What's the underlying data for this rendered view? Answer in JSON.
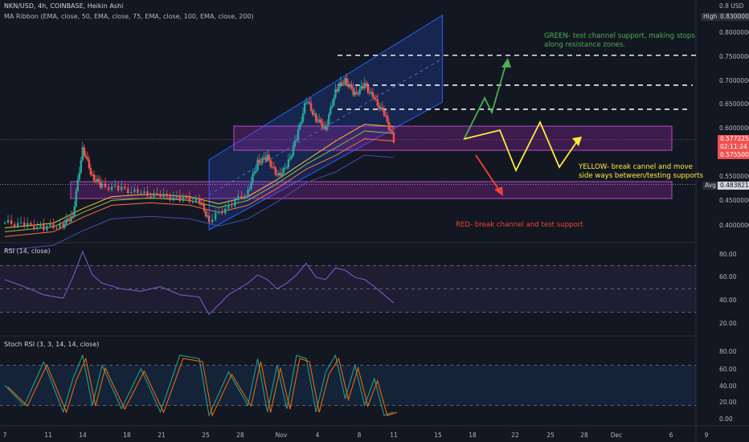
{
  "header": {
    "symbol_line": "NKN/USD, 4h, COINBASE, Heikin Ashi",
    "ma_line": "MA Ribbon (EMA, close, 50, EMA, close, 75, EMA, close, 100, EMA, close, 200)"
  },
  "price_axis": {
    "ticks": [
      "0.8 USD",
      "0.80000000",
      "0.75000000",
      "0.70000000",
      "0.65000000",
      "0.60000000",
      "0.55000000",
      "0.50000000",
      "0.45000000",
      "0.40000000"
    ],
    "high_label": "High",
    "high_value": "0.83000000",
    "current_price": "0.57722500",
    "countdown": "02:11:24",
    "open_price": "0.57550000",
    "avg_label": "Avg",
    "avg_value": "0.48382196"
  },
  "rsi_panel": {
    "label": "RSI (14, close)",
    "ticks": [
      "80.00",
      "60.00",
      "40.00",
      "20.00"
    ]
  },
  "stoch_panel": {
    "label": "Stoch RSI (3, 3, 14, 14, close)",
    "ticks": [
      "80.00",
      "60.00",
      "40.00",
      "20.00",
      "0.00"
    ]
  },
  "time_axis": [
    "7",
    "11",
    "14",
    "18",
    "21",
    "25",
    "28",
    "Nov",
    "4",
    "8",
    "11",
    "15",
    "18",
    "22",
    "25",
    "28",
    "Dec",
    "6",
    "9"
  ],
  "annotations": {
    "green": "GREEN- test channel support, making stops along resistance zones.",
    "yellow": "YELLOW- break cannel and move side ways between/testing supports",
    "red": "RED- break channel and test support"
  },
  "colors": {
    "background": "#131722",
    "bull": "#26a69a",
    "bear": "#ef5350",
    "channel": "#2962ff",
    "zone": "#9c27b0",
    "rsi": "#7e57c2",
    "green_arrow": "#4caf50",
    "yellow_arrow": "#ffeb3b",
    "red_arrow": "#f44336"
  },
  "chart_data": {
    "type": "candlestick",
    "price_range": [
      0.385,
      0.835
    ],
    "channel_top": [
      [
        28,
        0.535
      ],
      [
        52,
        0.835
      ]
    ],
    "channel_bottom": [
      [
        28,
        0.39
      ],
      [
        52,
        0.655
      ]
    ],
    "resistance_levels": [
      0.752,
      0.69,
      0.64
    ],
    "zones": [
      [
        0.555,
        0.605
      ],
      [
        0.455,
        0.49
      ]
    ],
    "rsi_range": [
      20,
      80
    ],
    "stoch_range": [
      0,
      100
    ],
    "series": [
      {
        "name": "Heikin Ashi close",
        "x": [
          7,
          9,
          11,
          13,
          14,
          15,
          16,
          17,
          19,
          21,
          23,
          25,
          27,
          28,
          30,
          32,
          33,
          34,
          35,
          36,
          37,
          38,
          39,
          40,
          41,
          42,
          43,
          44,
          45,
          46,
          47
        ],
        "y": [
          0.405,
          0.4,
          0.395,
          0.4,
          0.42,
          0.56,
          0.5,
          0.48,
          0.475,
          0.465,
          0.46,
          0.455,
          0.45,
          0.41,
          0.44,
          0.47,
          0.53,
          0.54,
          0.5,
          0.52,
          0.58,
          0.66,
          0.62,
          0.6,
          0.68,
          0.7,
          0.67,
          0.69,
          0.66,
          0.63,
          0.577
        ]
      },
      {
        "name": "RSI",
        "x": [
          7,
          9,
          11,
          13,
          14,
          15,
          16,
          17,
          19,
          21,
          23,
          25,
          27,
          28,
          30,
          32,
          33,
          34,
          35,
          36,
          37,
          38,
          39,
          40,
          41,
          42,
          43,
          44,
          45,
          46,
          47
        ],
        "y": [
          58,
          52,
          45,
          42,
          60,
          82,
          62,
          55,
          50,
          48,
          52,
          45,
          43,
          28,
          45,
          55,
          62,
          58,
          50,
          55,
          62,
          72,
          60,
          58,
          68,
          66,
          60,
          58,
          52,
          45,
          38
        ]
      },
      {
        "name": "Stoch RSI K",
        "x": [
          7,
          9,
          11,
          13,
          14,
          15,
          16,
          17,
          19,
          21,
          23,
          25,
          27,
          28,
          30,
          32,
          33,
          34,
          35,
          36,
          37,
          38,
          39,
          40,
          41,
          42,
          43,
          44,
          45,
          46,
          47
        ],
        "y": [
          50,
          20,
          85,
          10,
          60,
          95,
          20,
          80,
          15,
          75,
          10,
          95,
          90,
          5,
          70,
          20,
          90,
          10,
          80,
          15,
          95,
          90,
          10,
          70,
          95,
          30,
          80,
          20,
          60,
          5,
          10
        ]
      }
    ]
  }
}
